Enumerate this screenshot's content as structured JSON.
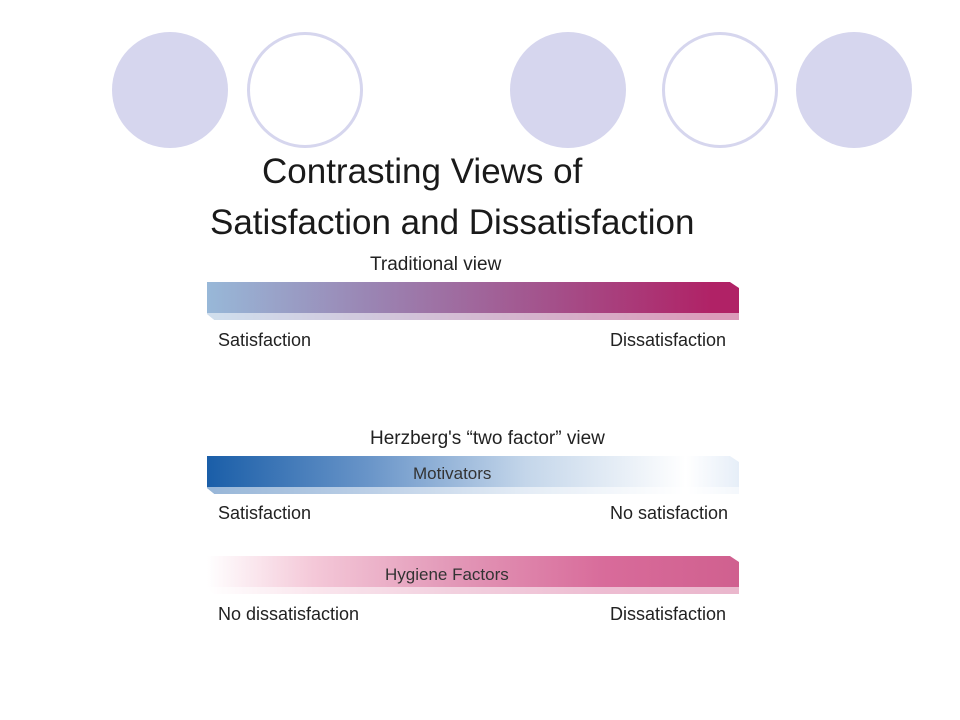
{
  "title": {
    "line1": "Contrasting Views of",
    "line2": "Satisfaction and Dissatisfaction"
  },
  "traditional": {
    "caption": "Traditional view",
    "left_label": "Satisfaction",
    "right_label": "Dissatisfaction"
  },
  "herzberg": {
    "caption": "Herzberg's “two factor” view",
    "motivators": {
      "label": "Motivators",
      "left_label": "Satisfaction",
      "right_label": "No satisfaction"
    },
    "hygiene": {
      "label": "Hygiene Factors",
      "left_label": "No dissatisfaction",
      "right_label": "Dissatisfaction"
    }
  },
  "colors": {
    "circle_fill": "#d6d6ee",
    "traditional_start": "#98b8d8",
    "traditional_end": "#b02266",
    "motivators": "#1a5ea8",
    "hygiene": "#d0608f"
  }
}
